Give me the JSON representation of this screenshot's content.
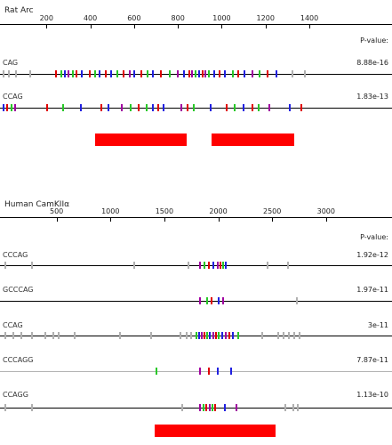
{
  "panels": [
    {
      "title": "Rat Arc",
      "pvalue_header": "P-value:",
      "scale_max": 1550,
      "ticks": [
        200,
        400,
        600,
        800,
        1000,
        1200,
        1400
      ],
      "sequences": [
        {
          "name": "CAG",
          "pvalue": "8.88e-16",
          "line_color": "#000000",
          "marks": [
            {
              "pos": 0,
              "c": "#b0b0b0"
            },
            {
              "pos": 25,
              "c": "#b0b0b0"
            },
            {
              "pos": 55,
              "c": "#b0b0b0"
            },
            {
              "pos": 120,
              "c": "#b0b0b0"
            },
            {
              "pos": 238,
              "c": "#e00000"
            },
            {
              "pos": 262,
              "c": "#28c828"
            },
            {
              "pos": 282,
              "c": "#2020e0"
            },
            {
              "pos": 298,
              "c": "#a000a0"
            },
            {
              "pos": 315,
              "c": "#28c828"
            },
            {
              "pos": 332,
              "c": "#e00000"
            },
            {
              "pos": 358,
              "c": "#2020e0"
            },
            {
              "pos": 395,
              "c": "#e00000"
            },
            {
              "pos": 418,
              "c": "#28c828"
            },
            {
              "pos": 440,
              "c": "#2020e0"
            },
            {
              "pos": 468,
              "c": "#e00000"
            },
            {
              "pos": 492,
              "c": "#2020e0"
            },
            {
              "pos": 520,
              "c": "#28c828"
            },
            {
              "pos": 548,
              "c": "#e00000"
            },
            {
              "pos": 575,
              "c": "#a000a0"
            },
            {
              "pos": 598,
              "c": "#2020e0"
            },
            {
              "pos": 630,
              "c": "#e00000"
            },
            {
              "pos": 658,
              "c": "#28c828"
            },
            {
              "pos": 680,
              "c": "#2020e0"
            },
            {
              "pos": 718,
              "c": "#e00000"
            },
            {
              "pos": 758,
              "c": "#28c828"
            },
            {
              "pos": 795,
              "c": "#a000a0"
            },
            {
              "pos": 825,
              "c": "#2020e0"
            },
            {
              "pos": 848,
              "c": "#e00000"
            },
            {
              "pos": 862,
              "c": "#a000a0"
            },
            {
              "pos": 878,
              "c": "#28c828"
            },
            {
              "pos": 892,
              "c": "#2020e0"
            },
            {
              "pos": 908,
              "c": "#e00000"
            },
            {
              "pos": 922,
              "c": "#a000a0"
            },
            {
              "pos": 938,
              "c": "#28c828"
            },
            {
              "pos": 962,
              "c": "#2020e0"
            },
            {
              "pos": 985,
              "c": "#e00000"
            },
            {
              "pos": 1012,
              "c": "#2020e0"
            },
            {
              "pos": 1045,
              "c": "#28c828"
            },
            {
              "pos": 1072,
              "c": "#e00000"
            },
            {
              "pos": 1098,
              "c": "#2020e0"
            },
            {
              "pos": 1135,
              "c": "#a000a0"
            },
            {
              "pos": 1168,
              "c": "#28c828"
            },
            {
              "pos": 1205,
              "c": "#e00000"
            },
            {
              "pos": 1245,
              "c": "#2020e0"
            },
            {
              "pos": 1320,
              "c": "#b0b0b0"
            },
            {
              "pos": 1375,
              "c": "#b0b0b0"
            }
          ]
        },
        {
          "name": "CCAG",
          "pvalue": "1.83e-13",
          "line_color": "#000000",
          "marks": [
            {
              "pos": 0,
              "c": "#2020e0"
            },
            {
              "pos": 18,
              "c": "#e00000"
            },
            {
              "pos": 35,
              "c": "#28c828"
            },
            {
              "pos": 52,
              "c": "#a000a0"
            },
            {
              "pos": 198,
              "c": "#e00000"
            },
            {
              "pos": 272,
              "c": "#28c828"
            },
            {
              "pos": 355,
              "c": "#2020e0"
            },
            {
              "pos": 445,
              "c": "#e00000"
            },
            {
              "pos": 478,
              "c": "#2020e0"
            },
            {
              "pos": 538,
              "c": "#a000a0"
            },
            {
              "pos": 582,
              "c": "#28c828"
            },
            {
              "pos": 618,
              "c": "#e00000"
            },
            {
              "pos": 655,
              "c": "#28c828"
            },
            {
              "pos": 680,
              "c": "#2020e0"
            },
            {
              "pos": 705,
              "c": "#e00000"
            },
            {
              "pos": 732,
              "c": "#2020e0"
            },
            {
              "pos": 810,
              "c": "#a000a0"
            },
            {
              "pos": 840,
              "c": "#e00000"
            },
            {
              "pos": 868,
              "c": "#28c828"
            },
            {
              "pos": 945,
              "c": "#2020e0"
            },
            {
              "pos": 1018,
              "c": "#e00000"
            },
            {
              "pos": 1055,
              "c": "#28c828"
            },
            {
              "pos": 1095,
              "c": "#2020e0"
            },
            {
              "pos": 1135,
              "c": "#e00000"
            },
            {
              "pos": 1165,
              "c": "#28c828"
            },
            {
              "pos": 1212,
              "c": "#a000a0"
            },
            {
              "pos": 1305,
              "c": "#2020e0"
            },
            {
              "pos": 1360,
              "c": "#e00000"
            }
          ]
        }
      ],
      "bars": [
        {
          "start": 420,
          "end": 840
        },
        {
          "start": 955,
          "end": 1330
        }
      ]
    },
    {
      "title": "Human CamKIIα",
      "pvalue_header": "P-value:",
      "scale_max": 3150,
      "ticks": [
        500,
        1000,
        1500,
        2000,
        2500,
        3000
      ],
      "sequences": [
        {
          "name": "CCCAG",
          "pvalue": "1.92e-12",
          "line_color": "#000000",
          "marks": [
            {
              "pos": 15,
              "c": "#b0b0b0"
            },
            {
              "pos": 265,
              "c": "#b0b0b0"
            },
            {
              "pos": 1215,
              "c": "#b0b0b0"
            },
            {
              "pos": 1715,
              "c": "#b0b0b0"
            },
            {
              "pos": 1825,
              "c": "#a000a0"
            },
            {
              "pos": 1865,
              "c": "#28c828"
            },
            {
              "pos": 1905,
              "c": "#e00000"
            },
            {
              "pos": 1945,
              "c": "#2020e0"
            },
            {
              "pos": 1985,
              "c": "#a000a0"
            },
            {
              "pos": 2010,
              "c": "#e00000"
            },
            {
              "pos": 2035,
              "c": "#28c828"
            },
            {
              "pos": 2060,
              "c": "#2020e0"
            },
            {
              "pos": 2450,
              "c": "#b0b0b0"
            },
            {
              "pos": 2640,
              "c": "#b0b0b0"
            }
          ]
        },
        {
          "name": "GCCCAG",
          "pvalue": "1.97e-11",
          "line_color": "#000000",
          "marks": [
            {
              "pos": 1825,
              "c": "#a000a0"
            },
            {
              "pos": 1885,
              "c": "#28c828"
            },
            {
              "pos": 1930,
              "c": "#e00000"
            },
            {
              "pos": 1995,
              "c": "#2020e0"
            },
            {
              "pos": 2040,
              "c": "#a000a0"
            },
            {
              "pos": 2720,
              "c": "#b0b0b0"
            }
          ]
        },
        {
          "name": "CCAG",
          "pvalue": "3e-11",
          "line_color": "#000000",
          "marks": [
            {
              "pos": 20,
              "c": "#b0b0b0"
            },
            {
              "pos": 90,
              "c": "#b0b0b0"
            },
            {
              "pos": 165,
              "c": "#b0b0b0"
            },
            {
              "pos": 260,
              "c": "#b0b0b0"
            },
            {
              "pos": 385,
              "c": "#b0b0b0"
            },
            {
              "pos": 460,
              "c": "#b0b0b0"
            },
            {
              "pos": 510,
              "c": "#b0b0b0"
            },
            {
              "pos": 660,
              "c": "#b0b0b0"
            },
            {
              "pos": 1080,
              "c": "#b0b0b0"
            },
            {
              "pos": 1370,
              "c": "#b0b0b0"
            },
            {
              "pos": 1640,
              "c": "#b0b0b0"
            },
            {
              "pos": 1700,
              "c": "#b0b0b0"
            },
            {
              "pos": 1740,
              "c": "#b0b0b0"
            },
            {
              "pos": 1790,
              "c": "#28c828"
            },
            {
              "pos": 1815,
              "c": "#2020e0"
            },
            {
              "pos": 1840,
              "c": "#a000a0"
            },
            {
              "pos": 1865,
              "c": "#e00000"
            },
            {
              "pos": 1890,
              "c": "#28c828"
            },
            {
              "pos": 1915,
              "c": "#2020e0"
            },
            {
              "pos": 1945,
              "c": "#a000a0"
            },
            {
              "pos": 1970,
              "c": "#e00000"
            },
            {
              "pos": 1995,
              "c": "#28c828"
            },
            {
              "pos": 2025,
              "c": "#2020e0"
            },
            {
              "pos": 2060,
              "c": "#a000a0"
            },
            {
              "pos": 2095,
              "c": "#e00000"
            },
            {
              "pos": 2130,
              "c": "#2020e0"
            },
            {
              "pos": 2180,
              "c": "#28c828"
            },
            {
              "pos": 2400,
              "c": "#b0b0b0"
            },
            {
              "pos": 2545,
              "c": "#b0b0b0"
            },
            {
              "pos": 2600,
              "c": "#b0b0b0"
            },
            {
              "pos": 2650,
              "c": "#b0b0b0"
            },
            {
              "pos": 2700,
              "c": "#b0b0b0"
            },
            {
              "pos": 2745,
              "c": "#b0b0b0"
            }
          ]
        },
        {
          "name": "CCCAGG",
          "pvalue": "7.87e-11",
          "line_color": "#b4b4b4",
          "marks": [
            {
              "pos": 1420,
              "c": "#28c828"
            },
            {
              "pos": 1820,
              "c": "#a000a0"
            },
            {
              "pos": 1905,
              "c": "#e00000"
            },
            {
              "pos": 1985,
              "c": "#2020e0"
            },
            {
              "pos": 2110,
              "c": "#2020e0"
            }
          ]
        },
        {
          "name": "CCAGG",
          "pvalue": "1.13e-10",
          "line_color": "#000000",
          "marks": [
            {
              "pos": 15,
              "c": "#b0b0b0"
            },
            {
              "pos": 265,
              "c": "#b0b0b0"
            },
            {
              "pos": 1655,
              "c": "#b0b0b0"
            },
            {
              "pos": 1825,
              "c": "#a000a0"
            },
            {
              "pos": 1855,
              "c": "#28c828"
            },
            {
              "pos": 1880,
              "c": "#e00000"
            },
            {
              "pos": 1910,
              "c": "#a000a0"
            },
            {
              "pos": 1935,
              "c": "#28c828"
            },
            {
              "pos": 1965,
              "c": "#e00000"
            },
            {
              "pos": 2050,
              "c": "#2020e0"
            },
            {
              "pos": 2160,
              "c": "#a000a0"
            },
            {
              "pos": 2610,
              "c": "#b0b0b0"
            },
            {
              "pos": 2685,
              "c": "#b0b0b0"
            },
            {
              "pos": 2730,
              "c": "#b0b0b0"
            }
          ]
        }
      ],
      "bars": [
        {
          "start": 1410,
          "end": 2530
        }
      ]
    }
  ]
}
